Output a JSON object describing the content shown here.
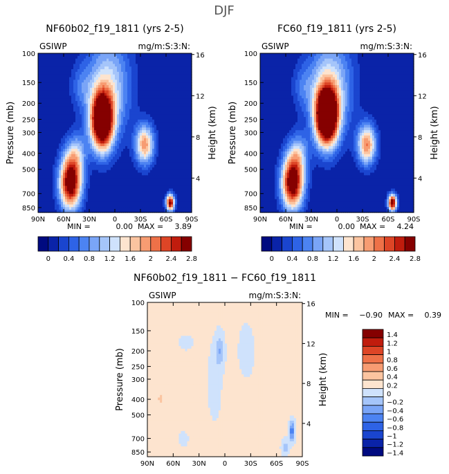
{
  "figure_title": "DJF",
  "chart_data": [
    {
      "type": "heatmap",
      "title": "NF60b02_f19_1811 (yrs 2-5)",
      "left_label": "GSIWP",
      "right_label": "mg/m:S:3:N:",
      "ylabel": "Pressure (mb)",
      "y2label": "Height (km)",
      "xticks": [
        "90N",
        "60N",
        "30N",
        "0",
        "30S",
        "60S",
        "90S"
      ],
      "yticks": [
        "100",
        "150",
        "200",
        "250",
        "300",
        "400",
        "500",
        "700",
        "850"
      ],
      "y2ticks": [
        "16",
        "12",
        "8",
        "4"
      ],
      "stats": {
        "min_label": "MIN =",
        "min": "0.00",
        "max_label": "MAX =",
        "max": "3.89"
      },
      "colorbar": {
        "orientation": "horizontal",
        "levels": [
          0,
          0.2,
          0.4,
          0.6,
          0.8,
          1,
          1.2,
          1.4,
          1.6,
          1.8,
          2,
          2.2,
          2.4,
          2.6,
          2.8
        ],
        "tick_labels": [
          "0",
          "0.4",
          "0.8",
          "1.2",
          "1.6",
          "2",
          "2.4",
          "2.8"
        ]
      },
      "features": [
        {
          "lat": 15,
          "logp": 2.41,
          "slat": 13,
          "sp": 0.17,
          "amp": 3.6
        },
        {
          "lat": 40,
          "logp": 2.2,
          "slat": 12,
          "sp": 0.13,
          "amp": 0.45
        },
        {
          "lat": 52,
          "logp": 2.78,
          "slat": 13,
          "sp": 0.16,
          "amp": 3.1
        },
        {
          "lat": 45,
          "logp": 2.6,
          "slat": 12,
          "sp": 0.12,
          "amp": 0.9
        },
        {
          "lat": -35,
          "logp": 2.55,
          "slat": 11,
          "sp": 0.12,
          "amp": 1.9
        },
        {
          "lat": -65,
          "logp": 2.9,
          "slat": 5,
          "sp": 0.05,
          "amp": 2.8
        },
        {
          "lat": 8,
          "logp": 2.2,
          "slat": 26,
          "sp": 0.3,
          "amp": 1.3
        }
      ]
    },
    {
      "type": "heatmap",
      "title": "FC60_f19_1811 (yrs 2-5)",
      "left_label": "GSIWP",
      "right_label": "mg/m:S:3:N:",
      "ylabel": "Pressure (mb)",
      "y2label": "Height (km)",
      "xticks": [
        "90N",
        "60N",
        "30N",
        "0",
        "30S",
        "60S",
        "90S"
      ],
      "yticks": [
        "100",
        "150",
        "200",
        "250",
        "300",
        "400",
        "500",
        "700",
        "850"
      ],
      "y2ticks": [
        "16",
        "12",
        "8",
        "4"
      ],
      "stats": {
        "min_label": "MIN =",
        "min": "0.00",
        "max_label": "MAX =",
        "max": "4.24"
      },
      "colorbar": {
        "orientation": "horizontal",
        "levels": [
          0,
          0.2,
          0.4,
          0.6,
          0.8,
          1,
          1.2,
          1.4,
          1.6,
          1.8,
          2,
          2.2,
          2.4,
          2.6,
          2.8
        ],
        "tick_labels": [
          "0",
          "0.4",
          "0.8",
          "1.2",
          "1.6",
          "2",
          "2.4",
          "2.8"
        ]
      },
      "features": [
        {
          "lat": 12,
          "logp": 2.38,
          "slat": 13,
          "sp": 0.17,
          "amp": 4.0
        },
        {
          "lat": 40,
          "logp": 2.2,
          "slat": 12,
          "sp": 0.13,
          "amp": 0.45
        },
        {
          "lat": 52,
          "logp": 2.78,
          "slat": 13,
          "sp": 0.16,
          "amp": 3.1
        },
        {
          "lat": 45,
          "logp": 2.6,
          "slat": 12,
          "sp": 0.12,
          "amp": 0.9
        },
        {
          "lat": -35,
          "logp": 2.55,
          "slat": 11,
          "sp": 0.12,
          "amp": 2.0
        },
        {
          "lat": -65,
          "logp": 2.9,
          "slat": 5,
          "sp": 0.05,
          "amp": 3.0
        },
        {
          "lat": 8,
          "logp": 2.2,
          "slat": 26,
          "sp": 0.3,
          "amp": 1.3
        }
      ]
    },
    {
      "type": "heatmap",
      "title": "NF60b02_f19_1811 − FC60_f19_1811",
      "left_label": "GSIWP",
      "right_label": "mg/m:S:3:N:",
      "ylabel": "Pressure (mb)",
      "y2label": "Height (km)",
      "xticks": [
        "90N",
        "60N",
        "30N",
        "0",
        "30S",
        "60S",
        "90S"
      ],
      "yticks": [
        "100",
        "150",
        "200",
        "250",
        "300",
        "400",
        "500",
        "700",
        "850"
      ],
      "y2ticks": [
        "16",
        "12",
        "8",
        "4"
      ],
      "stats": {
        "min_label": "MIN =",
        "min": "−0.90",
        "max_label": "MAX =",
        "max": "0.39"
      },
      "colorbar": {
        "orientation": "vertical",
        "levels": [
          -1.4,
          -1.2,
          -1,
          -0.8,
          -0.6,
          -0.4,
          -0.2,
          0,
          0.2,
          0.4,
          0.6,
          0.8,
          1,
          1.2,
          1.4
        ],
        "tick_labels": [
          "1.4",
          "1.2",
          "1",
          "0.8",
          "0.6",
          "0.4",
          "0.2",
          "0",
          "−0.2",
          "−0.4",
          "−0.6",
          "−0.8",
          "−1",
          "−1.2",
          "−1.4"
        ]
      },
      "base": 0.05,
      "features": [
        {
          "lat": 6,
          "logp": 2.3,
          "slat": 5,
          "sp": 0.1,
          "amp": -0.42
        },
        {
          "lat": 12,
          "logp": 2.5,
          "slat": 9,
          "sp": 0.25,
          "amp": -0.12
        },
        {
          "lat": -78,
          "logp": 2.8,
          "slat": 3,
          "sp": 0.06,
          "amp": -0.85
        },
        {
          "lat": -70,
          "logp": 2.9,
          "slat": 4,
          "sp": 0.05,
          "amp": -0.35
        },
        {
          "lat": 75,
          "logp": 2.6,
          "slat": 8,
          "sp": 0.08,
          "amp": 0.16
        },
        {
          "lat": 48,
          "logp": 2.85,
          "slat": 6,
          "sp": 0.05,
          "amp": -0.12
        },
        {
          "lat": -25,
          "logp": 2.3,
          "slat": 14,
          "sp": 0.25,
          "amp": -0.08
        },
        {
          "lat": 45,
          "logp": 2.25,
          "slat": 15,
          "sp": 0.08,
          "amp": -0.07
        }
      ]
    }
  ],
  "colors": {
    "seq": [
      "#000a80",
      "#0a23a8",
      "#1a45cf",
      "#2e63e6",
      "#4c83f2",
      "#7aa5f7",
      "#a5c5fa",
      "#cfe2fc",
      "#fde4cf",
      "#fbc4a0",
      "#f79c72",
      "#ee7148",
      "#dd4526",
      "#c01c0d",
      "#850000"
    ],
    "div": [
      "#000a80",
      "#0a23a8",
      "#1a45cf",
      "#2e63e6",
      "#4c83f2",
      "#7aa5f7",
      "#a5c5fa",
      "#cfe2fc",
      "#fde4cf",
      "#fbc4a0",
      "#f79c72",
      "#ee7148",
      "#dd4526",
      "#c01c0d",
      "#850000"
    ]
  }
}
